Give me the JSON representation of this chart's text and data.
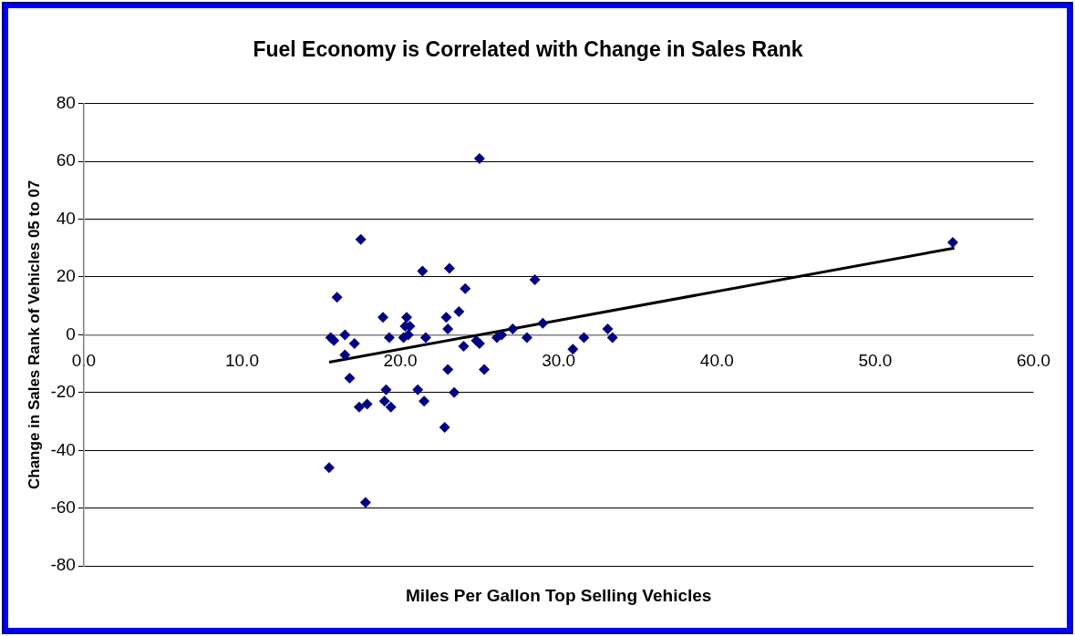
{
  "chart_data": {
    "type": "scatter",
    "title": "Fuel Economy is Correlated with Change in Sales Rank",
    "xlabel": "Miles Per Gallon Top Selling Vehicles",
    "ylabel": "Change in Sales Rank of Vehicles 05 to 07",
    "xlim": [
      0,
      60
    ],
    "xticks": [
      {
        "value": 0,
        "label": "0.0"
      },
      {
        "value": 10,
        "label": "10.0"
      },
      {
        "value": 20,
        "label": "20.0"
      },
      {
        "value": 30,
        "label": "30.0"
      },
      {
        "value": 40,
        "label": "40.0"
      },
      {
        "value": 50,
        "label": "50.0"
      },
      {
        "value": 60,
        "label": "60.0"
      }
    ],
    "ylim": [
      -80,
      80
    ],
    "yticks": [
      -80,
      -60,
      -40,
      -20,
      0,
      20,
      40,
      60,
      80
    ],
    "grid": "y",
    "legend": false,
    "marker": "diamond",
    "series": [
      {
        "color": "#000080",
        "x": [
          15.5,
          15.6,
          15.8,
          16.0,
          16.5,
          16.8,
          16.5,
          17.1,
          17.5,
          17.4,
          17.9,
          17.8,
          18.9,
          19.1,
          19.0,
          19.3,
          19.4,
          20.4,
          20.3,
          20.6,
          20.5,
          20.2,
          21.1,
          21.4,
          21.6,
          21.5,
          22.9,
          23.0,
          23.1,
          23.0,
          22.8,
          23.4,
          23.7,
          24.1,
          24.0,
          24.8,
          25.0,
          25.0,
          25.3,
          26.1,
          26.4,
          27.1,
          28.0,
          28.5,
          29.0,
          30.9,
          31.6,
          33.1,
          33.4,
          54.9
        ],
        "values": [
          -46,
          -1,
          -2,
          13,
          -7,
          -15,
          0,
          -3,
          33,
          -25,
          -24,
          -58,
          6,
          -19,
          -23,
          -1,
          -25,
          6,
          3,
          3,
          0,
          -1,
          -19,
          22,
          -1,
          -23,
          6,
          2,
          23,
          -12,
          -32,
          -20,
          8,
          16,
          -4,
          -2,
          61,
          -3,
          -12,
          -1,
          0,
          2,
          -1,
          19,
          4,
          -5,
          -1,
          2,
          -1,
          32
        ]
      },
      {
        "type": "line",
        "color": "#000000",
        "marker": "none",
        "line_style": "solid",
        "x": [
          15.5,
          55
        ],
        "values": [
          -9.5,
          30
        ]
      }
    ]
  }
}
